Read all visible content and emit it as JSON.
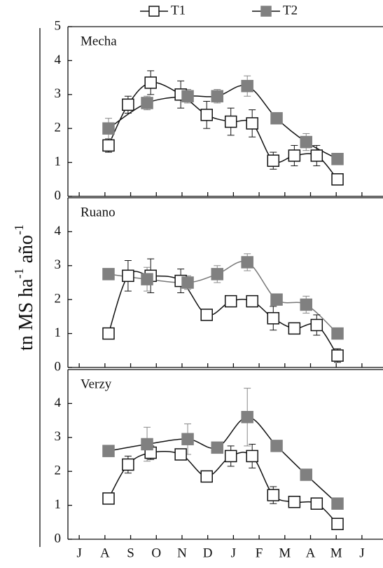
{
  "y_label": [
    "tn MS ha",
    "-1",
    " año",
    "-1"
  ],
  "chart_data": [
    {
      "type": "line",
      "title": "Mecha",
      "xlim": [
        -0.44,
        11.82
      ],
      "xticks": [
        {
          "value": 0,
          "label": "J"
        },
        {
          "value": 1,
          "label": "A"
        },
        {
          "value": 2,
          "label": "S"
        },
        {
          "value": 3,
          "label": "O"
        },
        {
          "value": 4,
          "label": "N"
        },
        {
          "value": 5,
          "label": "D"
        },
        {
          "value": 6,
          "label": "J"
        },
        {
          "value": 7,
          "label": "F"
        },
        {
          "value": 8,
          "label": "M"
        },
        {
          "value": 9,
          "label": "A"
        },
        {
          "value": 10,
          "label": "M"
        },
        {
          "value": 11,
          "label": "J"
        }
      ],
      "ylim": [
        0,
        5
      ],
      "yticks": [
        0,
        1,
        2,
        3,
        4,
        5
      ],
      "series": [
        {
          "name": "T1",
          "color": "#ffffff",
          "line_color": "#111111",
          "x": [
            1.14,
            1.9,
            2.78,
            3.95,
            4.96,
            5.9,
            6.73,
            7.55,
            8.37,
            9.24,
            10.05
          ],
          "values": [
            1.5,
            2.7,
            3.35,
            3.0,
            2.4,
            2.2,
            2.15,
            1.05,
            1.2,
            1.2,
            0.5
          ],
          "errors": [
            0.2,
            0.25,
            0.35,
            0.4,
            0.4,
            0.4,
            0.4,
            0.25,
            0.3,
            0.3,
            0.15
          ]
        },
        {
          "name": "T2",
          "color": "#808080",
          "line_color": "#111111",
          "x": [
            1.14,
            2.64,
            4.22,
            5.37,
            6.54,
            7.68,
            8.83,
            10.05
          ],
          "values": [
            2.0,
            2.75,
            2.95,
            2.95,
            3.25,
            2.3,
            1.6,
            1.1
          ],
          "errors": [
            0.3,
            0.2,
            0.2,
            0.2,
            0.3,
            0.1,
            0.25,
            0.1
          ]
        }
      ]
    },
    {
      "type": "line",
      "title": "Ruano",
      "xlim": [
        -0.44,
        11.82
      ],
      "ylim": [
        0,
        5
      ],
      "yticks": [
        0,
        1,
        2,
        3,
        4
      ],
      "series": [
        {
          "name": "T1",
          "color": "#ffffff",
          "line_color": "#111111",
          "x": [
            1.14,
            1.9,
            2.78,
            3.95,
            4.96,
            5.9,
            6.73,
            7.55,
            8.37,
            9.24,
            10.05
          ],
          "values": [
            1.0,
            2.7,
            2.7,
            2.55,
            1.55,
            1.95,
            1.95,
            1.45,
            1.15,
            1.25,
            0.35
          ],
          "errors": [
            0.15,
            0.45,
            0.5,
            0.35,
            0.1,
            0.15,
            0.15,
            0.35,
            0.15,
            0.3,
            0.2
          ]
        },
        {
          "name": "T2",
          "color": "#808080",
          "line_color": "#777777",
          "x": [
            1.14,
            2.64,
            4.22,
            5.37,
            6.54,
            7.68,
            8.83,
            10.05
          ],
          "values": [
            2.75,
            2.6,
            2.5,
            2.75,
            3.1,
            2.0,
            1.85,
            1.0
          ],
          "errors": [
            0.1,
            0.35,
            0.2,
            0.25,
            0.25,
            0.15,
            0.25,
            0.1
          ]
        }
      ]
    },
    {
      "type": "line",
      "title": "Verzy",
      "xlim": [
        -0.44,
        11.82
      ],
      "ylim": [
        0,
        5
      ],
      "yticks": [
        0,
        1,
        2,
        3,
        4
      ],
      "series": [
        {
          "name": "T1",
          "color": "#ffffff",
          "line_color": "#111111",
          "x": [
            1.14,
            1.9,
            2.78,
            3.95,
            4.96,
            5.9,
            6.73,
            7.55,
            8.37,
            9.24,
            10.05
          ],
          "values": [
            1.2,
            2.2,
            2.55,
            2.5,
            1.85,
            2.45,
            2.45,
            1.3,
            1.1,
            1.05,
            0.45
          ],
          "errors": [
            0.1,
            0.25,
            0.2,
            0.15,
            0.1,
            0.3,
            0.35,
            0.25,
            0.15,
            0.1,
            0.15
          ]
        },
        {
          "name": "T2",
          "color": "#808080",
          "line_color": "#111111",
          "x": [
            1.14,
            2.64,
            4.22,
            5.37,
            6.54,
            7.68,
            8.83,
            10.05
          ],
          "values": [
            2.6,
            2.8,
            2.95,
            2.7,
            3.6,
            2.75,
            1.9,
            1.05
          ],
          "errors": [
            0.1,
            0.5,
            0.45,
            0.15,
            0.85,
            0.15,
            0.1,
            0.1
          ]
        }
      ]
    }
  ]
}
